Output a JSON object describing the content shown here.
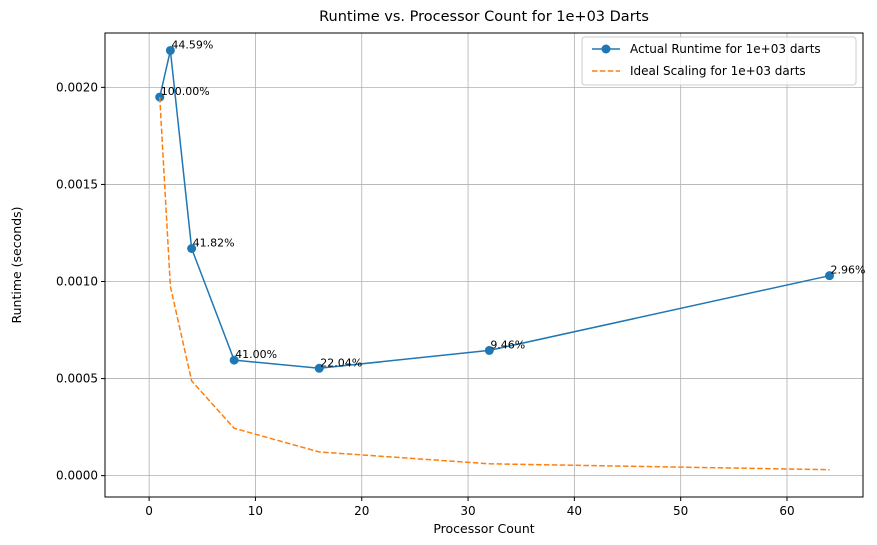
{
  "chart_data": {
    "type": "line",
    "title": "Runtime vs. Processor Count for 1e+03 Darts",
    "xlabel": "Processor Count",
    "ylabel": "Runtime (seconds)",
    "xlim": [
      -4.15,
      67.15
    ],
    "ylim": [
      -0.00011,
      0.00228
    ],
    "xticks": [
      0,
      10,
      20,
      30,
      40,
      50,
      60
    ],
    "xtick_labels": [
      "0",
      "10",
      "20",
      "30",
      "40",
      "50",
      "60"
    ],
    "yticks": [
      0,
      0.0005,
      0.001,
      0.0015,
      0.002
    ],
    "ytick_labels": [
      "0.0000",
      "0.0005",
      "0.0010",
      "0.0015",
      "0.0020"
    ],
    "grid": true,
    "legend_position": "top-right",
    "series": [
      {
        "name": "Actual Runtime for 1e+03 darts",
        "style": "solid-marker",
        "color": "#1f77b4",
        "x": [
          1,
          2,
          4,
          8,
          16,
          32,
          64
        ],
        "y": [
          0.00195,
          0.00219,
          0.00117,
          0.000595,
          0.000553,
          0.000645,
          0.00103
        ],
        "labels": [
          "100.00%",
          "44.59%",
          "41.82%",
          "41.00%",
          "22.04%",
          "9.46%",
          "2.96%"
        ]
      },
      {
        "name": "Ideal Scaling for 1e+03 darts",
        "style": "dashed",
        "color": "#ff7f0e",
        "x": [
          1,
          2,
          4,
          8,
          16,
          32,
          64
        ],
        "y": [
          0.00195,
          0.000975,
          0.000488,
          0.000244,
          0.000122,
          6.1e-05,
          3.05e-05
        ]
      }
    ]
  }
}
